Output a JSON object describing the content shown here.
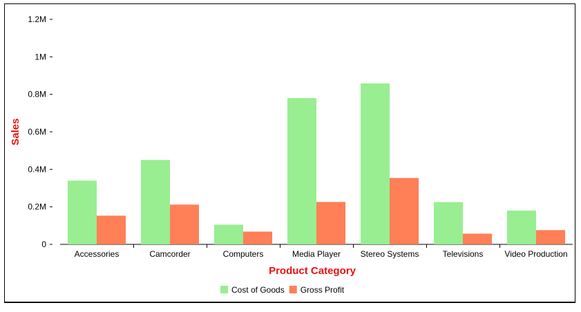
{
  "chart_data": {
    "type": "bar",
    "xlabel": "Product Category",
    "ylabel": "Sales",
    "categories": [
      "Accessories",
      "Camcorder",
      "Computers",
      "Media Player",
      "Stereo Systems",
      "Televisions",
      "Video Production"
    ],
    "series": [
      {
        "name": "Cost of Goods",
        "color": "#98ee90",
        "values": [
          340000,
          450000,
          105000,
          780000,
          858000,
          225000,
          180000
        ]
      },
      {
        "name": "Gross Profit",
        "color": "#ff7f56",
        "values": [
          153000,
          212000,
          68000,
          226000,
          354000,
          57000,
          76000
        ]
      }
    ],
    "ylim": [
      0,
      1200000
    ],
    "y_ticks": [
      {
        "value": 0,
        "label": "0"
      },
      {
        "value": 200000,
        "label": "0.2M"
      },
      {
        "value": 400000,
        "label": "0.4M"
      },
      {
        "value": 600000,
        "label": "0.6M"
      },
      {
        "value": 800000,
        "label": "0.8M"
      },
      {
        "value": 1000000,
        "label": "1M"
      },
      {
        "value": 1200000,
        "label": "1.2M"
      }
    ],
    "grid": false,
    "legend_position": "bottom-center",
    "title_color": "#e8110f"
  }
}
